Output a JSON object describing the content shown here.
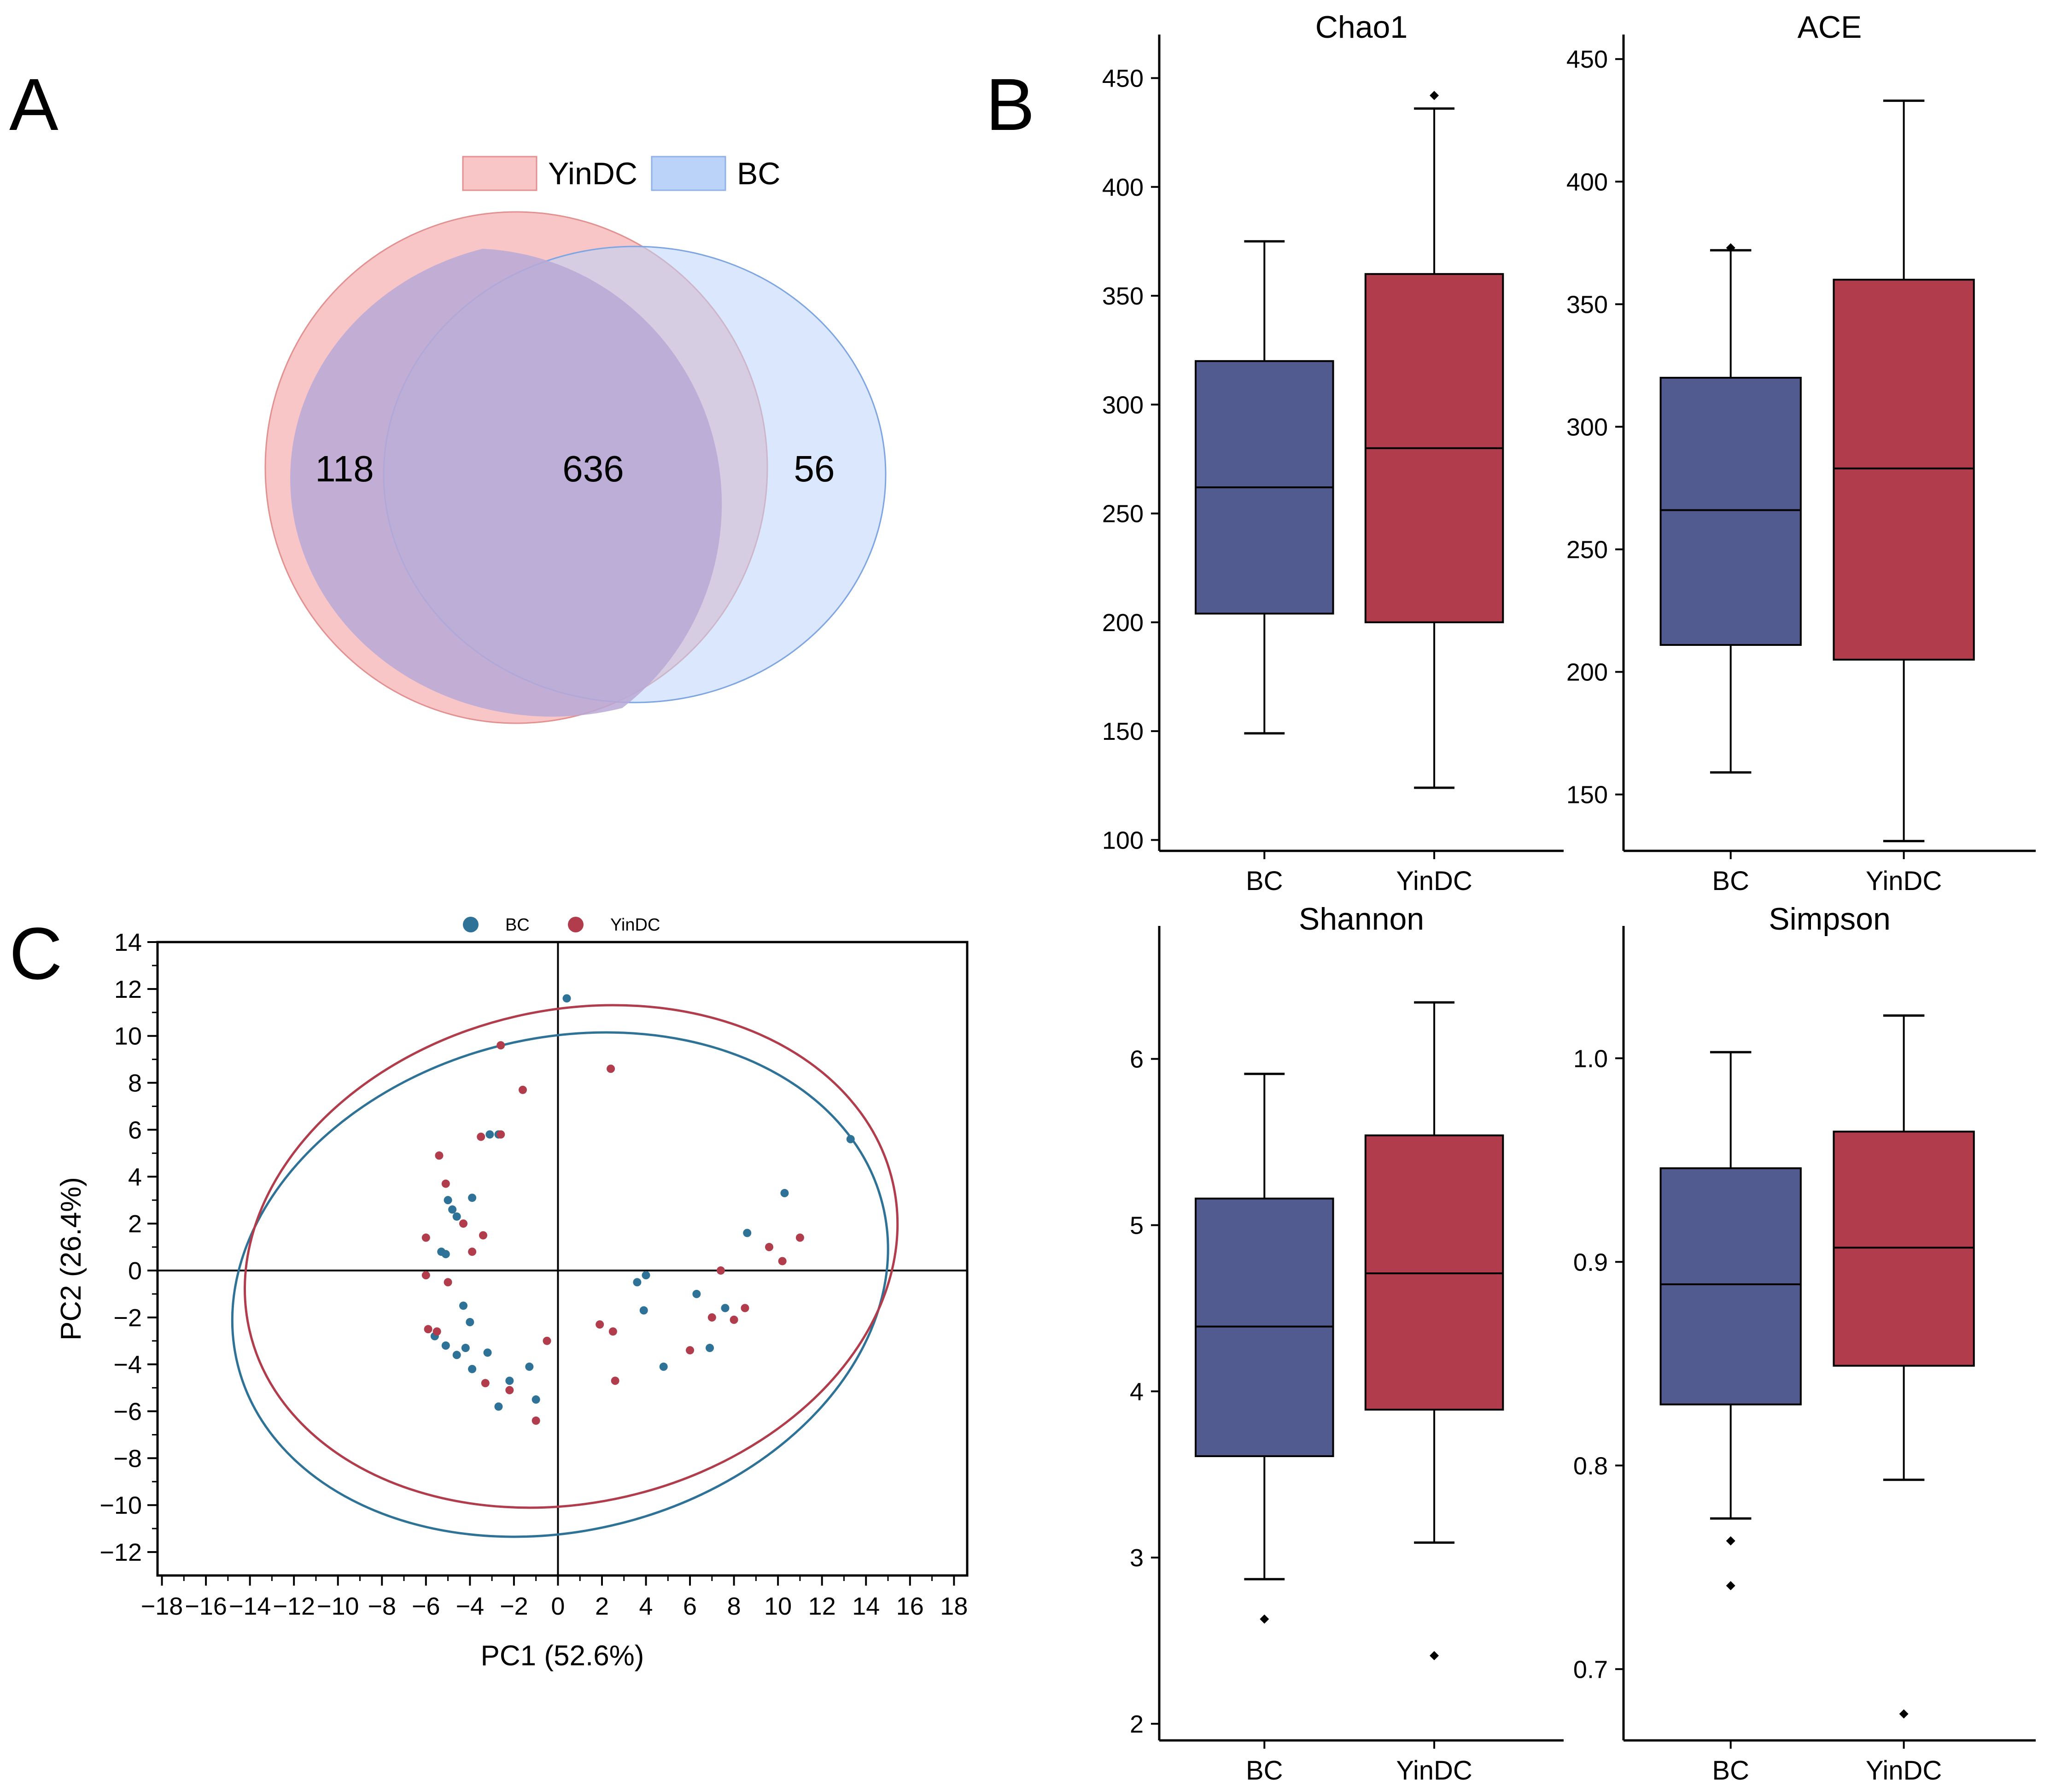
{
  "panels": {
    "a": "A",
    "b": "B",
    "c": "C"
  },
  "colors": {
    "bc": "#525b8f",
    "yin": "#b13d4c",
    "pca_bc": "#2e7297",
    "pca_yin": "#b13d4c",
    "venn_yin": "#f8c6c6",
    "venn_bc": "#bcd3f9"
  },
  "venn": {
    "legend": [
      "YinDC",
      "BC"
    ],
    "left_only": "118",
    "overlap": "636",
    "right_only": "56"
  },
  "chart_data": [
    {
      "type": "box",
      "title": "Chao1",
      "categories": [
        "BC",
        "YinDC"
      ],
      "ylim": [
        95,
        470
      ],
      "yticks": [
        100,
        150,
        200,
        250,
        300,
        350,
        400,
        450
      ],
      "boxes": [
        {
          "name": "BC",
          "whislo": 149,
          "q1": 204,
          "med": 262,
          "q3": 320,
          "whishi": 375,
          "fliers": []
        },
        {
          "name": "YinDC",
          "whislo": 124,
          "q1": 200,
          "med": 280,
          "q3": 360,
          "whishi": 436,
          "fliers": [
            442
          ]
        }
      ]
    },
    {
      "type": "box",
      "title": "ACE",
      "categories": [
        "BC",
        "YinDC"
      ],
      "ylim": [
        127,
        460
      ],
      "yticks": [
        150,
        200,
        250,
        300,
        350,
        400,
        450
      ],
      "boxes": [
        {
          "name": "BC",
          "whislo": 159,
          "q1": 211,
          "med": 266,
          "q3": 320,
          "whishi": 372,
          "fliers": [
            373
          ]
        },
        {
          "name": "YinDC",
          "whislo": 131,
          "q1": 205,
          "med": 283,
          "q3": 360,
          "whishi": 433,
          "fliers": []
        }
      ]
    },
    {
      "type": "box",
      "title": "Shannon",
      "categories": [
        "BC",
        "YinDC"
      ],
      "ylim": [
        1.9,
        6.8
      ],
      "yticks": [
        2,
        3,
        4,
        5,
        6
      ],
      "boxes": [
        {
          "name": "BC",
          "whislo": 2.87,
          "q1": 3.61,
          "med": 4.39,
          "q3": 5.16,
          "whishi": 5.91,
          "fliers": [
            2.63
          ]
        },
        {
          "name": "YinDC",
          "whislo": 3.09,
          "q1": 3.89,
          "med": 4.71,
          "q3": 5.54,
          "whishi": 6.34,
          "fliers": [
            2.41
          ]
        }
      ]
    },
    {
      "type": "box",
      "title": "Simpson",
      "categories": [
        "BC",
        "YinDC"
      ],
      "ylim": [
        0.665,
        1.065
      ],
      "yticks": [
        0.7,
        0.8,
        0.9,
        1.0
      ],
      "ytick_labels": [
        "0.7",
        "0.8",
        "0.9",
        "1.0"
      ],
      "boxes": [
        {
          "name": "BC",
          "whislo": 0.774,
          "q1": 0.83,
          "med": 0.889,
          "q3": 0.946,
          "whishi": 1.003,
          "fliers": [
            0.763,
            0.741
          ]
        },
        {
          "name": "YinDC",
          "whislo": 0.793,
          "q1": 0.849,
          "med": 0.907,
          "q3": 0.964,
          "whishi": 1.021,
          "fliers": [
            0.678
          ]
        }
      ]
    },
    {
      "type": "scatter",
      "xlabel": "PC1 (52.6%)",
      "ylabel": "PC2 (26.4%)",
      "xlim": [
        -18.2,
        18.6
      ],
      "ylim": [
        -13,
        14
      ],
      "xticks": [
        -18,
        -16,
        -14,
        -12,
        -10,
        -8,
        -6,
        -4,
        -2,
        0,
        2,
        4,
        6,
        8,
        10,
        12,
        14,
        16,
        18
      ],
      "yticks": [
        -12,
        -10,
        -8,
        -6,
        -4,
        -2,
        0,
        2,
        4,
        6,
        8,
        10,
        12,
        14
      ],
      "legend": [
        "BC",
        "YinDC"
      ],
      "series": [
        {
          "name": "BC",
          "points": [
            [
              0.4,
              11.6
            ],
            [
              13.3,
              5.6
            ],
            [
              10.3,
              3.3
            ],
            [
              8.6,
              1.6
            ],
            [
              7.6,
              -1.6
            ],
            [
              6.9,
              -3.3
            ],
            [
              6.3,
              -1.0
            ],
            [
              4.8,
              -4.1
            ],
            [
              4.0,
              -0.2
            ],
            [
              3.6,
              -0.5
            ],
            [
              3.9,
              -1.7
            ],
            [
              -2.7,
              5.8
            ],
            [
              -3.1,
              5.8
            ],
            [
              -3.9,
              3.1
            ],
            [
              -5.0,
              3.0
            ],
            [
              -4.8,
              2.6
            ],
            [
              -4.6,
              2.3
            ],
            [
              -5.3,
              0.8
            ],
            [
              -5.1,
              0.7
            ],
            [
              -4.3,
              -1.5
            ],
            [
              -4.0,
              -2.2
            ],
            [
              -5.6,
              -2.8
            ],
            [
              -5.1,
              -3.2
            ],
            [
              -4.6,
              -3.6
            ],
            [
              -4.2,
              -3.3
            ],
            [
              -3.2,
              -3.5
            ],
            [
              -3.9,
              -4.2
            ],
            [
              -1.3,
              -4.1
            ],
            [
              -2.2,
              -4.7
            ],
            [
              -2.7,
              -5.8
            ],
            [
              -1.0,
              -5.5
            ]
          ]
        },
        {
          "name": "YinDC",
          "points": [
            [
              -2.6,
              9.6
            ],
            [
              -1.6,
              7.7
            ],
            [
              2.4,
              8.6
            ],
            [
              -2.6,
              5.8
            ],
            [
              -3.5,
              5.7
            ],
            [
              -5.4,
              4.9
            ],
            [
              -5.1,
              3.7
            ],
            [
              -4.3,
              2.0
            ],
            [
              -3.4,
              1.5
            ],
            [
              -6.0,
              1.4
            ],
            [
              -3.9,
              0.8
            ],
            [
              -5.0,
              -0.5
            ],
            [
              -6.0,
              -0.2
            ],
            [
              -5.5,
              -2.6
            ],
            [
              -5.9,
              -2.5
            ],
            [
              -3.3,
              -4.8
            ],
            [
              -1.0,
              -6.4
            ],
            [
              -2.2,
              -5.1
            ],
            [
              -0.5,
              -3.0
            ],
            [
              1.9,
              -2.3
            ],
            [
              2.5,
              -2.6
            ],
            [
              2.6,
              -4.7
            ],
            [
              6.0,
              -3.4
            ],
            [
              7.0,
              -2.0
            ],
            [
              7.4,
              0.0
            ],
            [
              8.0,
              -2.1
            ],
            [
              8.5,
              -1.6
            ],
            [
              9.6,
              1.0
            ],
            [
              10.2,
              0.4
            ],
            [
              11.0,
              1.4
            ]
          ]
        }
      ],
      "ellipses": [
        {
          "name": "BC",
          "cx": 0.1,
          "cy": -0.6,
          "rx": 15.1,
          "ry": 10.5,
          "angle_deg": -14
        },
        {
          "name": "YinDC",
          "cx": 0.6,
          "cy": 0.6,
          "rx": 15.0,
          "ry": 10.5,
          "angle_deg": -13
        }
      ]
    }
  ]
}
